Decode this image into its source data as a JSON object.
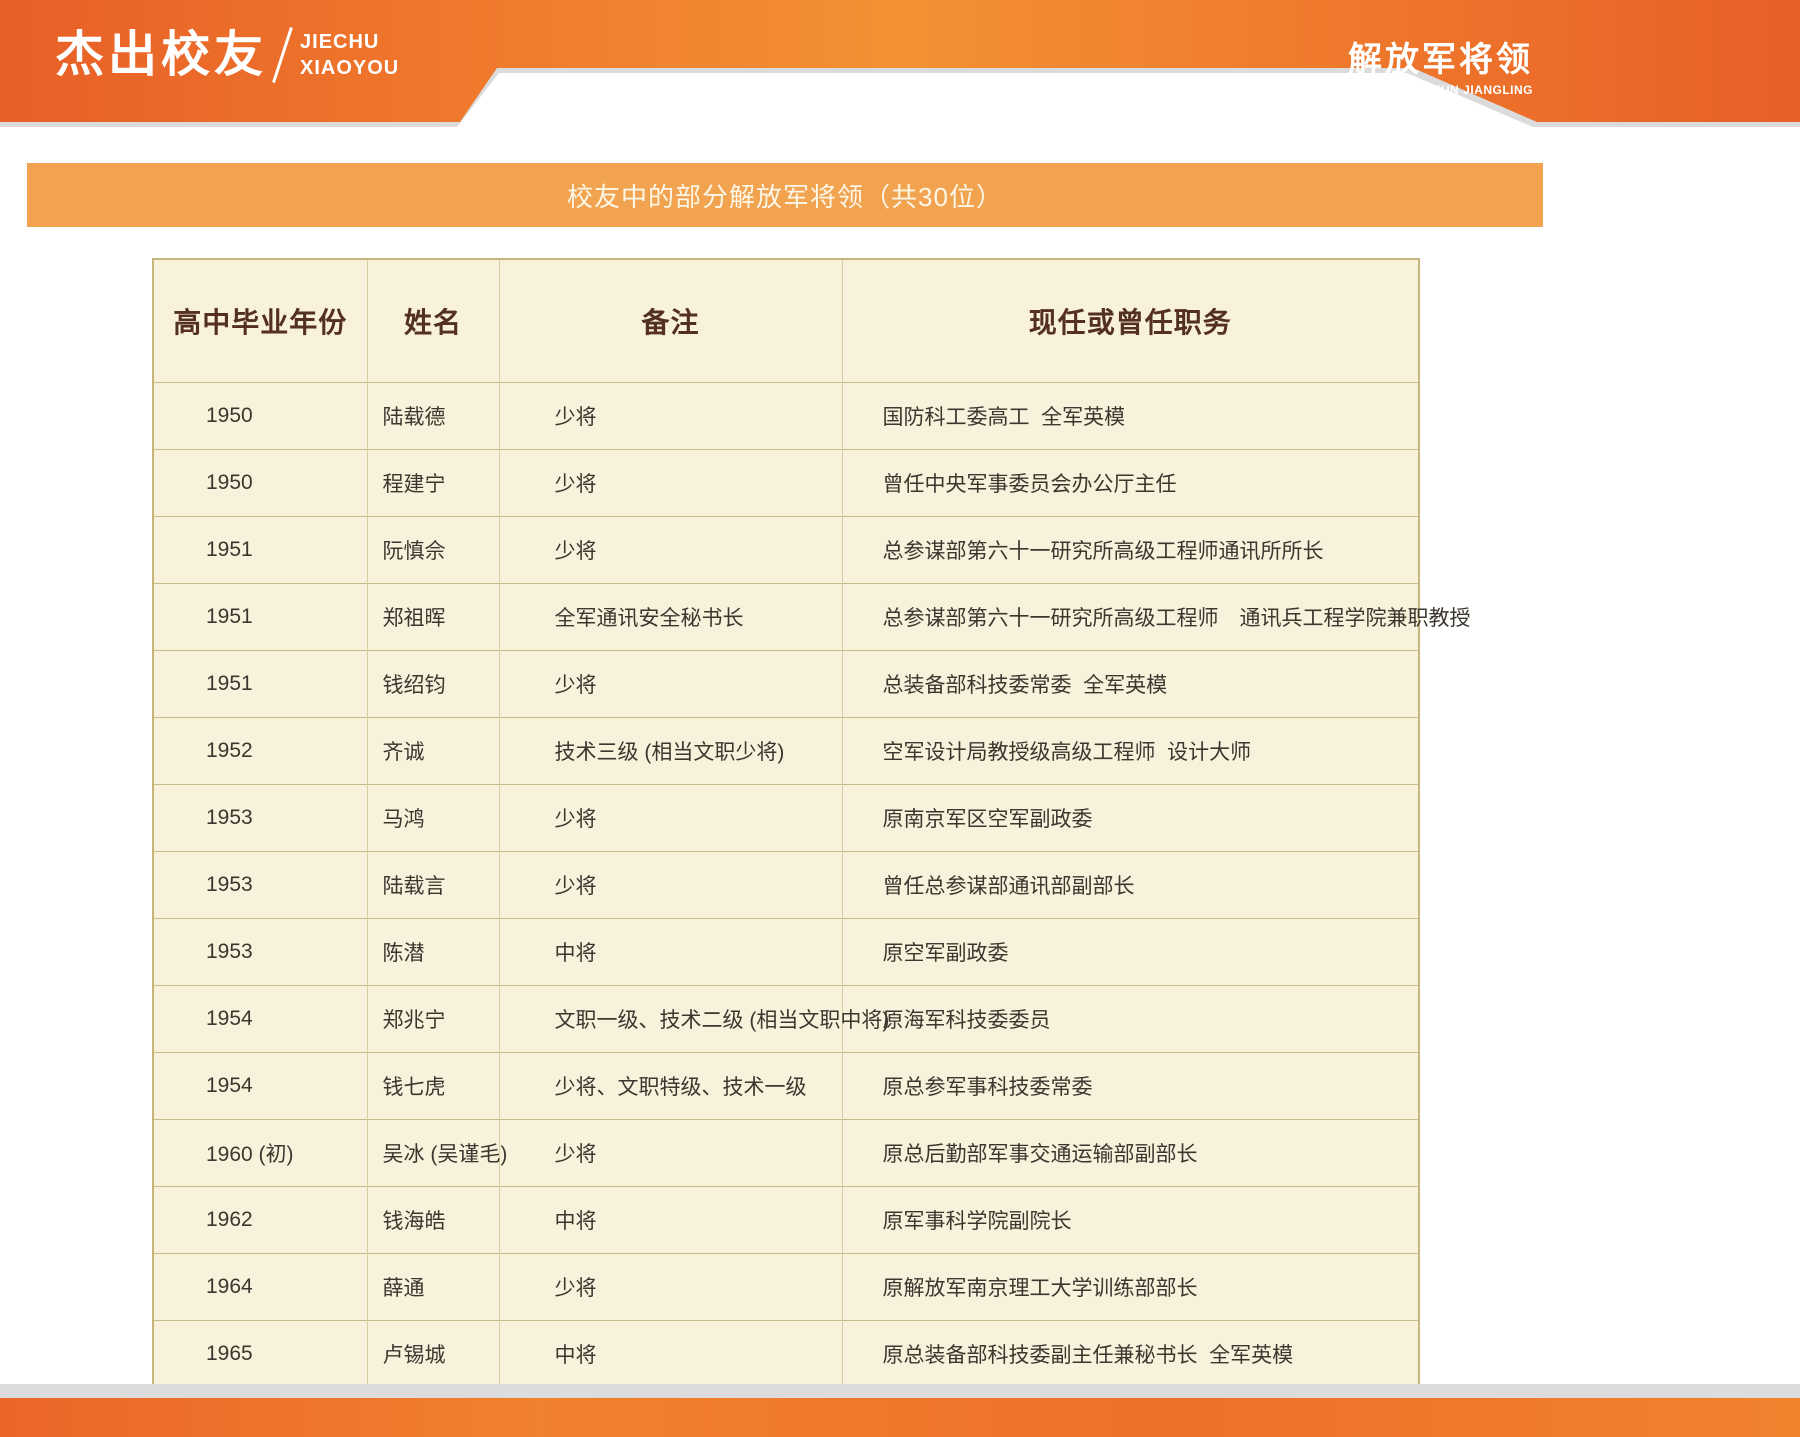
{
  "header": {
    "title": "杰出校友",
    "pinyin_line1": "JIECHU",
    "pinyin_line2": "XIAOYOU",
    "section_title": "解放军将领",
    "section_pinyin": "JIEFANGJUN JIANGLING"
  },
  "banner": {
    "text": "校友中的部分解放军将领（共30位）"
  },
  "table": {
    "columns": [
      "高中毕业年份",
      "姓名",
      "备注",
      "现任或曾任职务"
    ],
    "rows": [
      {
        "year": "1950",
        "name": "陆载德",
        "note": "少将",
        "position": "国防科工委高工  全军英模"
      },
      {
        "year": "1950",
        "name": "程建宁",
        "note": "少将",
        "position": "曾任中央军事委员会办公厅主任"
      },
      {
        "year": "1951",
        "name": "阮慎佘",
        "note": "少将",
        "position": "总参谋部第六十一研究所高级工程师通讯所所长"
      },
      {
        "year": "1951",
        "name": "郑祖晖",
        "note": "全军通讯安全秘书长",
        "position": "总参谋部第六十一研究所高级工程师　通讯兵工程学院兼职教授"
      },
      {
        "year": "1951",
        "name": "钱绍钧",
        "note": "少将",
        "position": "总装备部科技委常委  全军英模"
      },
      {
        "year": "1952",
        "name": "齐诚",
        "note": "技术三级 (相当文职少将)",
        "position": "空军设计局教授级高级工程师  设计大师"
      },
      {
        "year": "1953",
        "name": "马鸿",
        "note": "少将",
        "position": "原南京军区空军副政委"
      },
      {
        "year": "1953",
        "name": "陆载言",
        "note": "少将",
        "position": "曾任总参谋部通讯部副部长"
      },
      {
        "year": "1953",
        "name": "陈潜",
        "note": "中将",
        "position": "原空军副政委"
      },
      {
        "year": "1954",
        "name": "郑兆宁",
        "note": "文职一级、技术二级 (相当文职中将)",
        "position": "原海军科技委委员"
      },
      {
        "year": "1954",
        "name": "钱七虎",
        "note": "少将、文职特级、技术一级",
        "position": "原总参军事科技委常委"
      },
      {
        "year": "1960 (初)",
        "name": "吴冰 (吴谨毛)",
        "note": "少将",
        "position": "原总后勤部军事交通运输部副部长"
      },
      {
        "year": "1962",
        "name": "钱海皓",
        "note": "中将",
        "position": "原军事科学院副院长"
      },
      {
        "year": "1964",
        "name": "薛通",
        "note": "少将",
        "position": "原解放军南京理工大学训练部部长"
      },
      {
        "year": "1965",
        "name": "卢锡城",
        "note": "中将",
        "position": "原总装备部科技委副主任兼秘书长  全军英模"
      }
    ]
  },
  "colors": {
    "header_orange": "#ED6A2B",
    "banner_orange": "#F1A34F",
    "table_background": "#F8F1DB",
    "table_border": "#C6B67C",
    "header_text": "#53301F",
    "body_text": "#3B372F",
    "footer_gray": "#DCDCDC"
  }
}
